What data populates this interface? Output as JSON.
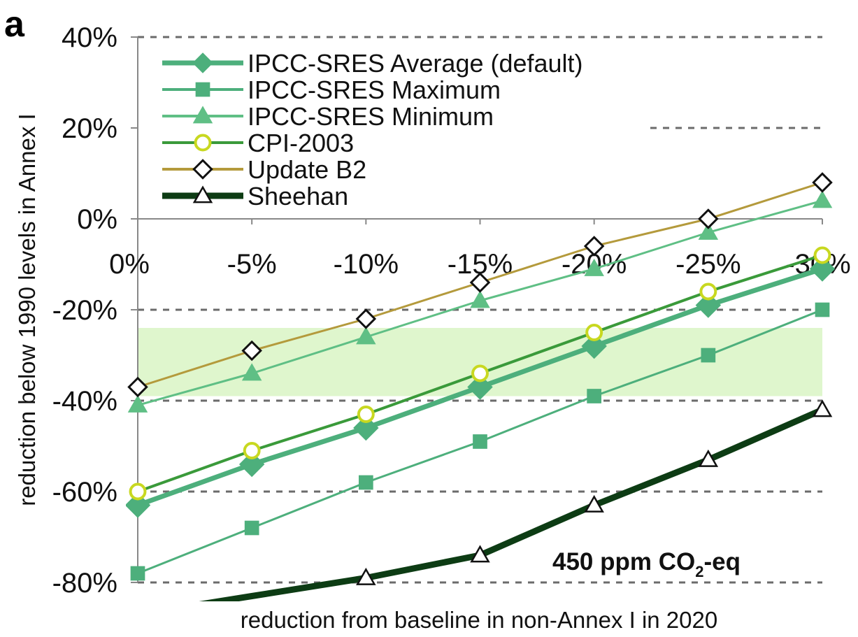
{
  "panel_label": "a",
  "chart_data": {
    "type": "line",
    "xlabel": "reduction from baseline in non-Annex I in 2020",
    "ylabel": "reduction below 1990 levels in Annex I",
    "categories": [
      "0%",
      "-5%",
      "-10%",
      "-15%",
      "-20%",
      "-25%",
      "-30%"
    ],
    "x": [
      0,
      -5,
      -10,
      -15,
      -20,
      -25,
      -30
    ],
    "ylim": [
      -80,
      40
    ],
    "yticks": [
      -80,
      -60,
      -40,
      -20,
      0,
      20,
      40
    ],
    "ytick_labels": [
      "-80%",
      "-60%",
      "-40%",
      "-20%",
      "0%",
      "20%",
      "40%"
    ],
    "grid": "dashed horizontal gridlines",
    "legend_position": "top-left",
    "shaded_band": {
      "y_from": -24,
      "y_to": -39,
      "color": "#d9f5c4"
    },
    "annotation": {
      "main": "450 ppm CO",
      "subscript": "2",
      "suffix": "-eq"
    },
    "series": [
      {
        "name": "IPCC-SRES Average (default)",
        "color": "#4daf7c",
        "marker": "diamond-filled",
        "line_width": 7,
        "values": [
          -63,
          -54,
          -46,
          -37,
          -28,
          -19,
          -11
        ]
      },
      {
        "name": "IPCC-SRES Maximum",
        "color": "#4daf7c",
        "marker": "square-filled",
        "line_width": 3,
        "values": [
          -78,
          -68,
          -58,
          -49,
          -39,
          -30,
          -20
        ]
      },
      {
        "name": "IPCC-SRES Minimum",
        "color": "#5fbf85",
        "marker": "triangle-filled",
        "line_width": 3,
        "values": [
          -41,
          -34,
          -26,
          -18,
          -11,
          -3,
          4
        ]
      },
      {
        "name": "CPI-2003",
        "color": "#3a9a3a",
        "marker": "circle-open",
        "marker_edge": "#c8d820",
        "line_width": 4,
        "values": [
          -60,
          -51,
          -43,
          -34,
          -25,
          -16,
          -8
        ]
      },
      {
        "name": "Update B2",
        "color": "#b49a3c",
        "marker": "diamond-open",
        "marker_edge": "#111111",
        "line_width": 3,
        "values": [
          -37,
          -29,
          -22,
          -14,
          -6,
          0,
          8
        ]
      },
      {
        "name": "Sheehan",
        "color": "#0d3c14",
        "marker": "triangle-open",
        "marker_edge": "#111111",
        "line_width": 9,
        "values": [
          -87,
          -83,
          -79,
          -74,
          -63,
          -53,
          -42
        ]
      }
    ]
  }
}
